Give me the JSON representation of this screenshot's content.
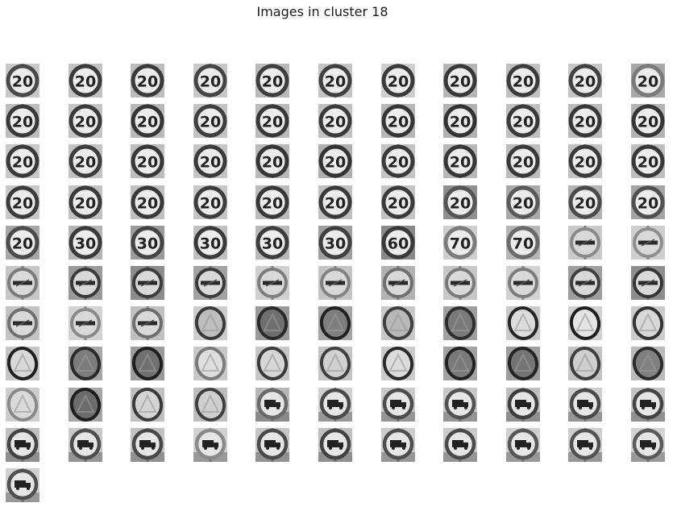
{
  "figure": {
    "title": "Images in cluster 18",
    "columns": 11,
    "colors": {
      "background": "#ffffff",
      "text": "#1a1a1a"
    }
  },
  "tiles": [
    {
      "kind": "number",
      "label": "20",
      "bg": "#c9c9c9",
      "ring": "#4a4a4a"
    },
    {
      "kind": "number",
      "label": "20",
      "bg": "#c2c2c2",
      "ring": "#3a3a3a"
    },
    {
      "kind": "number",
      "label": "20",
      "bg": "#bdbdbd",
      "ring": "#3a3a3a"
    },
    {
      "kind": "number",
      "label": "20",
      "bg": "#c8c8c8",
      "ring": "#454545"
    },
    {
      "kind": "number",
      "label": "20",
      "bg": "#b9b9b9",
      "ring": "#3e3e3e"
    },
    {
      "kind": "number",
      "label": "20",
      "bg": "#c4c4c4",
      "ring": "#404040"
    },
    {
      "kind": "number",
      "label": "20",
      "bg": "#cfcfcf",
      "ring": "#3a3a3a"
    },
    {
      "kind": "number",
      "label": "20",
      "bg": "#b5b5b5",
      "ring": "#383838"
    },
    {
      "kind": "number",
      "label": "20",
      "bg": "#c0c0c0",
      "ring": "#3c3c3c"
    },
    {
      "kind": "number",
      "label": "20",
      "bg": "#c6c6c6",
      "ring": "#424242"
    },
    {
      "kind": "number",
      "label": "20",
      "bg": "#a8a8a8",
      "ring": "#7a7a7a"
    },
    {
      "kind": "number",
      "label": "20",
      "bg": "#bcbcbc",
      "ring": "#3a3a3a"
    },
    {
      "kind": "number",
      "label": "20",
      "bg": "#c5c5c5",
      "ring": "#3a3a3a"
    },
    {
      "kind": "number",
      "label": "20",
      "bg": "#b8b8b8",
      "ring": "#353535"
    },
    {
      "kind": "number",
      "label": "20",
      "bg": "#c3c3c3",
      "ring": "#3f3f3f"
    },
    {
      "kind": "number",
      "label": "20",
      "bg": "#bababa",
      "ring": "#383838"
    },
    {
      "kind": "number",
      "label": "20",
      "bg": "#c1c1c1",
      "ring": "#3b3b3b"
    },
    {
      "kind": "number",
      "label": "20",
      "bg": "#b6b6b6",
      "ring": "#363636"
    },
    {
      "kind": "number",
      "label": "20",
      "bg": "#b2b2b2",
      "ring": "#333333"
    },
    {
      "kind": "number",
      "label": "20",
      "bg": "#c0c0c0",
      "ring": "#3a3a3a"
    },
    {
      "kind": "number",
      "label": "20",
      "bg": "#bbbbbb",
      "ring": "#383838"
    },
    {
      "kind": "number",
      "label": "20",
      "bg": "#b4b4b4",
      "ring": "#353535"
    },
    {
      "kind": "number",
      "label": "20",
      "bg": "#c7c7c7",
      "ring": "#3a3a3a"
    },
    {
      "kind": "number",
      "label": "20",
      "bg": "#c2c2c2",
      "ring": "#3c3c3c"
    },
    {
      "kind": "number",
      "label": "20",
      "bg": "#bebebe",
      "ring": "#383838"
    },
    {
      "kind": "number",
      "label": "20",
      "bg": "#c4c4c4",
      "ring": "#3a3a3a"
    },
    {
      "kind": "number",
      "label": "20",
      "bg": "#b9b9b9",
      "ring": "#363636"
    },
    {
      "kind": "number",
      "label": "20",
      "bg": "#b0b0b0",
      "ring": "#343434"
    },
    {
      "kind": "number",
      "label": "20",
      "bg": "#c3c3c3",
      "ring": "#3a3a3a"
    },
    {
      "kind": "number",
      "label": "20",
      "bg": "#b7b7b7",
      "ring": "#373737"
    },
    {
      "kind": "number",
      "label": "20",
      "bg": "#bcbcbc",
      "ring": "#393939"
    },
    {
      "kind": "number",
      "label": "20",
      "bg": "#c1c1c1",
      "ring": "#3a3a3a"
    },
    {
      "kind": "number",
      "label": "20",
      "bg": "#bdbdbd",
      "ring": "#383838"
    },
    {
      "kind": "number",
      "label": "20",
      "bg": "#c8c8c8",
      "ring": "#3c3c3c"
    },
    {
      "kind": "number",
      "label": "20",
      "bg": "#c2c2c2",
      "ring": "#3a3a3a"
    },
    {
      "kind": "number",
      "label": "20",
      "bg": "#c0c0c0",
      "ring": "#393939"
    },
    {
      "kind": "number",
      "label": "20",
      "bg": "#c6c6c6",
      "ring": "#3d3d3d"
    },
    {
      "kind": "number",
      "label": "20",
      "bg": "#bbbbbb",
      "ring": "#383838"
    },
    {
      "kind": "number",
      "label": "20",
      "bg": "#bfbfbf",
      "ring": "#3a3a3a"
    },
    {
      "kind": "number",
      "label": "20",
      "bg": "#c4c4c4",
      "ring": "#3b3b3b"
    },
    {
      "kind": "number",
      "label": "20",
      "bg": "#8f8f8f",
      "ring": "#555555"
    },
    {
      "kind": "number",
      "label": "20",
      "bg": "#a9a9a9",
      "ring": "#5a5a5a"
    },
    {
      "kind": "number",
      "label": "20",
      "bg": "#b3b3b3",
      "ring": "#4a4a4a"
    },
    {
      "kind": "number",
      "label": "20",
      "bg": "#a4a4a4",
      "ring": "#505050"
    },
    {
      "kind": "number",
      "label": "20",
      "bg": "#a6a6a6",
      "ring": "#4c4c4c"
    },
    {
      "kind": "number",
      "label": "30",
      "bg": "#b5b5b5",
      "ring": "#3a3a3a"
    },
    {
      "kind": "number",
      "label": "30",
      "bg": "#9c9c9c",
      "ring": "#454545"
    },
    {
      "kind": "number",
      "label": "30",
      "bg": "#c0c0c0",
      "ring": "#3a3a3a"
    },
    {
      "kind": "number",
      "label": "30",
      "bg": "#b8b8b8",
      "ring": "#3c3c3c"
    },
    {
      "kind": "number",
      "label": "30",
      "bg": "#a0a0a0",
      "ring": "#404040"
    },
    {
      "kind": "number",
      "label": "60",
      "bg": "#8a8a8a",
      "ring": "#3a3a3a"
    },
    {
      "kind": "number",
      "label": "70",
      "bg": "#cfcfcf",
      "ring": "#7c7c7c"
    },
    {
      "kind": "number",
      "label": "70",
      "bg": "#b6b6b6",
      "ring": "#6a6a6a"
    },
    {
      "kind": "bar",
      "bg": "#c9c9c9",
      "ring": "#8a8a8a"
    },
    {
      "kind": "bar",
      "bg": "#cfcfcf",
      "ring": "#8e8e8e"
    },
    {
      "kind": "bar",
      "bg": "#c6c6c6",
      "ring": "#7a7a7a"
    },
    {
      "kind": "bar",
      "bg": "#9a9a9a",
      "ring": "#3a3a3a"
    },
    {
      "kind": "bar",
      "bg": "#8c8c8c",
      "ring": "#3c3c3c"
    },
    {
      "kind": "bar",
      "bg": "#a3a3a3",
      "ring": "#3a3a3a"
    },
    {
      "kind": "bar",
      "bg": "#d0d0d0",
      "ring": "#7e7e7e"
    },
    {
      "kind": "bar",
      "bg": "#c4c4c4",
      "ring": "#828282"
    },
    {
      "kind": "bar",
      "bg": "#b2b2b2",
      "ring": "#707070"
    },
    {
      "kind": "bar",
      "bg": "#c7c7c7",
      "ring": "#7a7a7a"
    },
    {
      "kind": "bar",
      "bg": "#d2d2d2",
      "ring": "#7c7c7c"
    },
    {
      "kind": "bar",
      "bg": "#9e9e9e",
      "ring": "#404040"
    },
    {
      "kind": "bar",
      "bg": "#8e8e8e",
      "ring": "#353535"
    },
    {
      "kind": "bar",
      "bg": "#c3c3c3",
      "ring": "#707070"
    },
    {
      "kind": "bar",
      "bg": "#d3d3d3",
      "ring": "#8a8a8a"
    },
    {
      "kind": "bar",
      "bg": "#c0c0c0",
      "ring": "#6e6e6e"
    },
    {
      "kind": "tri",
      "bg": "#cdcdcd",
      "ring": "#3a3a3a",
      "fill": "#bebebe"
    },
    {
      "kind": "tri",
      "bg": "#9a9a9a",
      "ring": "#2a2a2a",
      "fill": "#6f6f6f"
    },
    {
      "kind": "tri",
      "bg": "#a5a5a5",
      "ring": "#222222",
      "fill": "#7e7e7e"
    },
    {
      "kind": "tri",
      "bg": "#c8c8c8",
      "ring": "#404040",
      "fill": "#b8b8b8"
    },
    {
      "kind": "tri",
      "bg": "#a0a0a0",
      "ring": "#2e2e2e",
      "fill": "#7a7a7a"
    },
    {
      "kind": "tri",
      "bg": "#cacaca",
      "ring": "#262626",
      "fill": "#dcdcdc"
    },
    {
      "kind": "tri",
      "bg": "#d0d0d0",
      "ring": "#1e1e1e",
      "fill": "#e4e4e4"
    },
    {
      "kind": "tri",
      "bg": "#cccccc",
      "ring": "#333333",
      "fill": "#d8d8d8"
    },
    {
      "kind": "tri",
      "bg": "#c5c5c5",
      "ring": "#202020",
      "fill": "#d8d8d8"
    },
    {
      "kind": "tri",
      "bg": "#a8a8a8",
      "ring": "#2a2a2a",
      "fill": "#7c7c7c"
    },
    {
      "kind": "tri",
      "bg": "#9c9c9c",
      "ring": "#1e1e1e",
      "fill": "#707070"
    },
    {
      "kind": "tri",
      "bg": "#c9c9c9",
      "ring": "#7a7a7a",
      "fill": "#dedede"
    },
    {
      "kind": "tri",
      "bg": "#c6c6c6",
      "ring": "#3a3a3a",
      "fill": "#d6d6d6"
    },
    {
      "kind": "tri",
      "bg": "#c4c4c4",
      "ring": "#404040",
      "fill": "#d2d2d2"
    },
    {
      "kind": "tri",
      "bg": "#cbcbcb",
      "ring": "#2a2a2a",
      "fill": "#dcdcdc"
    },
    {
      "kind": "tri",
      "bg": "#a3a3a3",
      "ring": "#222222",
      "fill": "#7a7a7a"
    },
    {
      "kind": "tri",
      "bg": "#9e9e9e",
      "ring": "#242424",
      "fill": "#747474"
    },
    {
      "kind": "tri",
      "bg": "#c2c2c2",
      "ring": "#3e3e3e",
      "fill": "#cfcfcf"
    },
    {
      "kind": "tri",
      "bg": "#bcbcbc",
      "ring": "#2c2c2c",
      "fill": "#808080"
    },
    {
      "kind": "tri",
      "bg": "#cdcdcd",
      "ring": "#8a8a8a",
      "fill": "#dadada"
    },
    {
      "kind": "tri",
      "bg": "#a6a6a6",
      "ring": "#1e1e1e",
      "fill": "#6c6c6c"
    },
    {
      "kind": "tri",
      "bg": "#c0c0c0",
      "ring": "#3a3a3a",
      "fill": "#d4d4d4"
    },
    {
      "kind": "tri",
      "bg": "#bdbdbd",
      "ring": "#404040",
      "fill": "#cfcfcf"
    },
    {
      "kind": "truck",
      "bg": "#b7b7b7",
      "ring": "#6a6a6a"
    },
    {
      "kind": "truck",
      "bg": "#d0d0d0",
      "ring": "#4a4a4a"
    },
    {
      "kind": "truck",
      "bg": "#cacaca",
      "ring": "#4c4c4c"
    },
    {
      "kind": "truck",
      "bg": "#c8c8c8",
      "ring": "#525252"
    },
    {
      "kind": "truck",
      "bg": "#c0c0c0",
      "ring": "#3e3e3e"
    },
    {
      "kind": "truck",
      "bg": "#cdcdcd",
      "ring": "#4a4a4a"
    },
    {
      "kind": "truck",
      "bg": "#c4c4c4",
      "ring": "#444444"
    },
    {
      "kind": "truck",
      "bg": "#bfbfbf",
      "ring": "#444444"
    },
    {
      "kind": "truck",
      "bg": "#c9c9c9",
      "ring": "#4e4e4e"
    },
    {
      "kind": "truck",
      "bg": "#c2c2c2",
      "ring": "#484848"
    },
    {
      "kind": "truck",
      "bg": "#d2d2d2",
      "ring": "#8a8a8a"
    },
    {
      "kind": "truck",
      "bg": "#c5c5c5",
      "ring": "#4a4a4a"
    },
    {
      "kind": "truck",
      "bg": "#c0c0c0",
      "ring": "#424242"
    },
    {
      "kind": "truck",
      "bg": "#cccccc",
      "ring": "#4e4e4e"
    },
    {
      "kind": "truck",
      "bg": "#cacaca",
      "ring": "#4a4a4a"
    },
    {
      "kind": "truck",
      "bg": "#d0d0d0",
      "ring": "#565656"
    },
    {
      "kind": "truck",
      "bg": "#cecece",
      "ring": "#525252"
    },
    {
      "kind": "truck",
      "bg": "#d3d3d3",
      "ring": "#5a5a5a"
    },
    {
      "kind": "truck",
      "bg": "#d0d0d0",
      "ring": "#505050"
    }
  ]
}
